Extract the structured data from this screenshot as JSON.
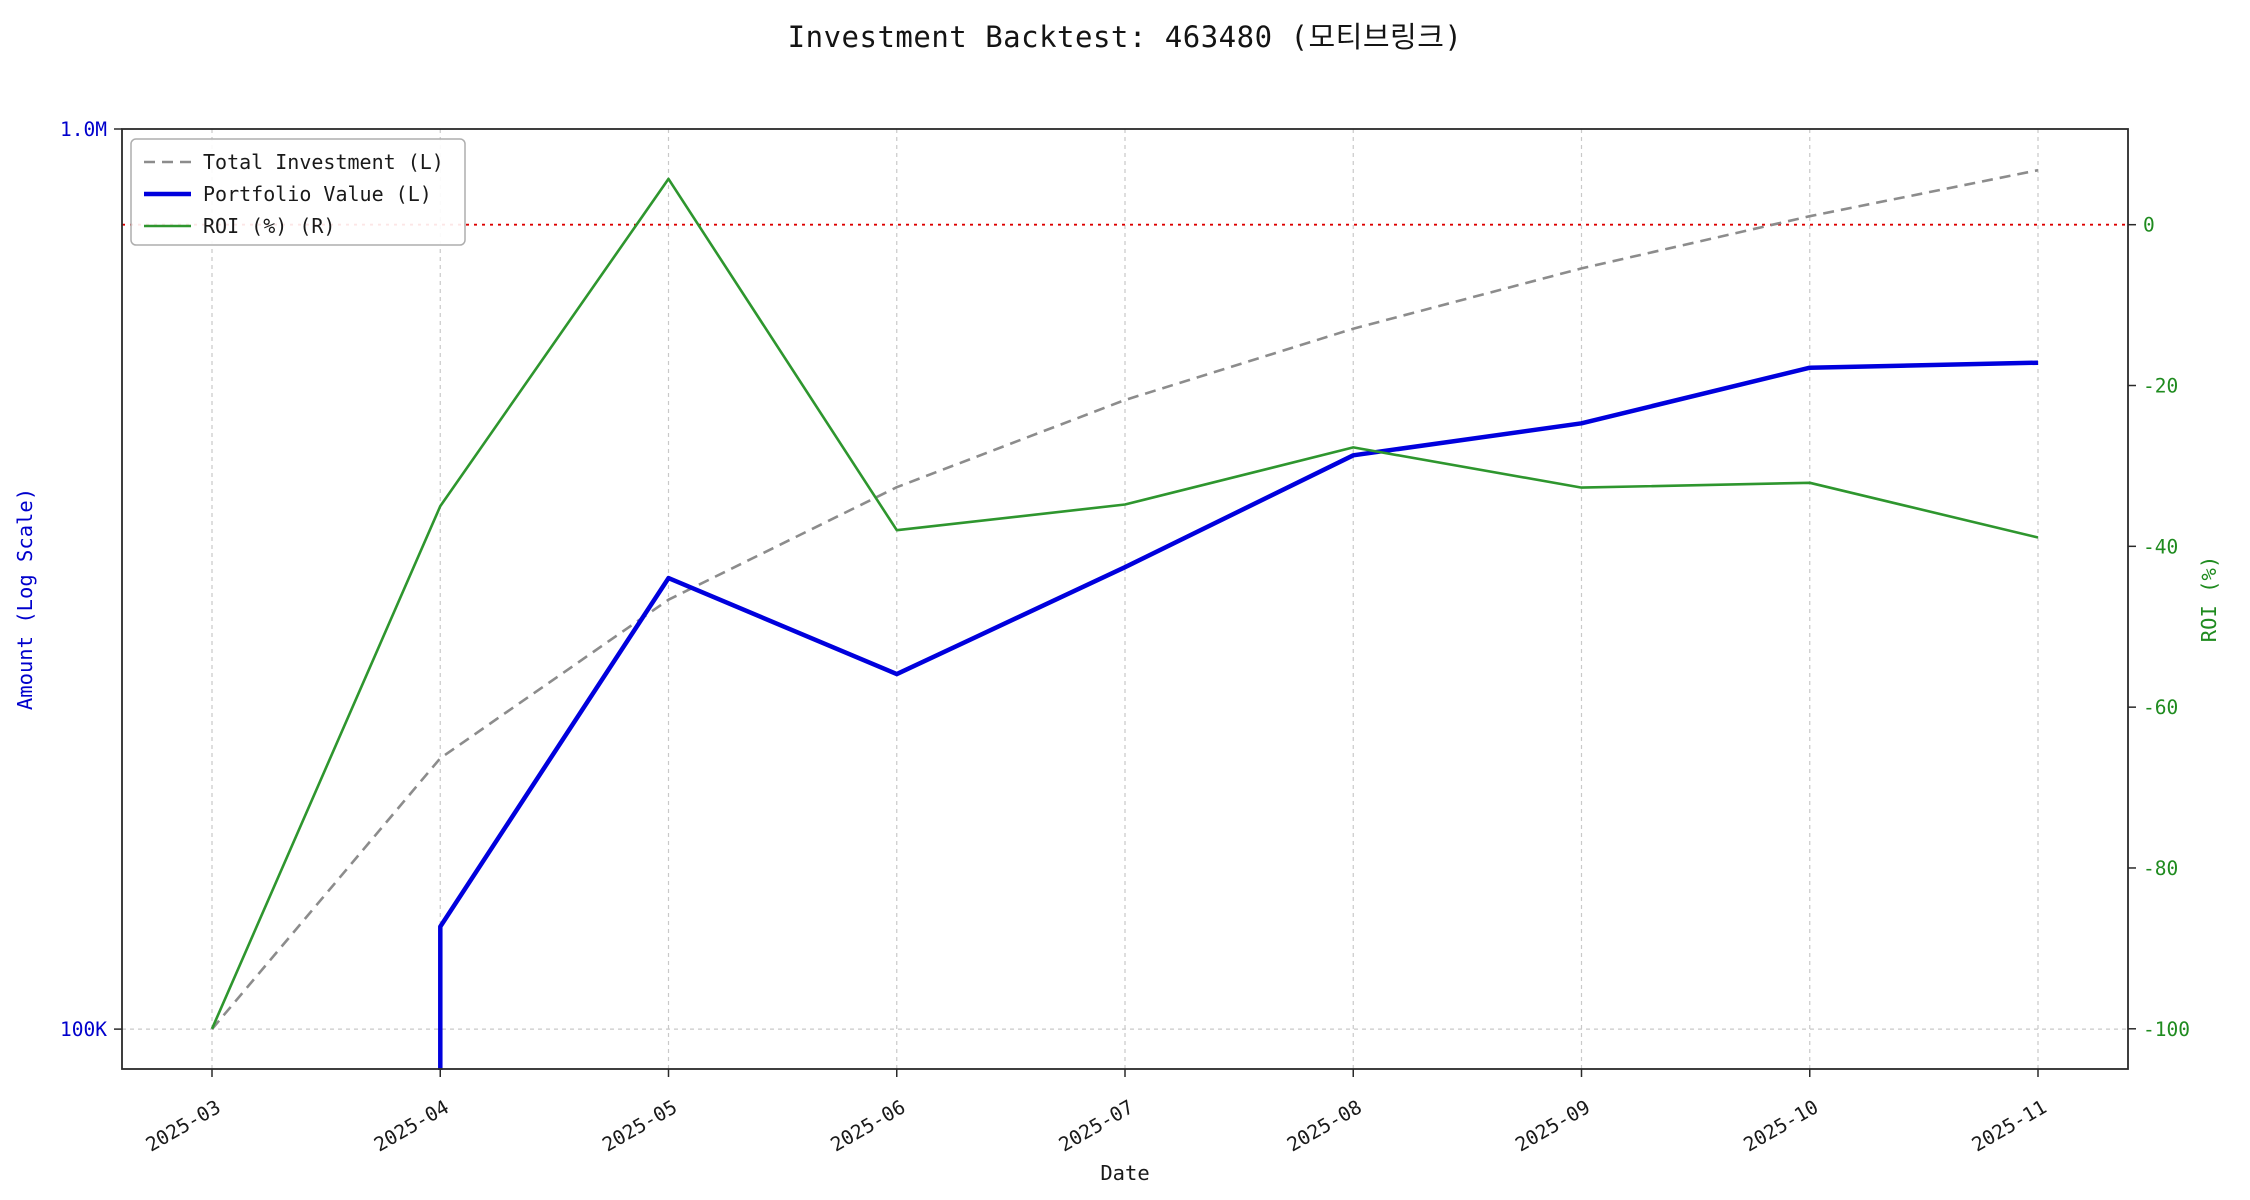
{
  "chart_data": {
    "type": "line",
    "title": "Investment Backtest: 463480 (모티브링크)",
    "xlabel": "Date",
    "x": [
      "2025-03",
      "2025-04",
      "2025-05",
      "2025-06",
      "2025-07",
      "2025-08",
      "2025-09",
      "2025-10",
      "2025-11"
    ],
    "left_axis": {
      "label": "Amount (Log Scale)",
      "scale": "log",
      "range": [
        90300,
        1000000
      ],
      "ticks": [
        {
          "value": 1000000,
          "label": "1.0M"
        },
        {
          "value": 100000,
          "label": "100K"
        }
      ],
      "color": "#0000cc"
    },
    "right_axis": {
      "label": "ROI (%)",
      "scale": "linear",
      "range": [
        -105,
        11.9
      ],
      "ticks": [
        {
          "value": 0,
          "label": "0"
        },
        {
          "value": -20,
          "label": "-20"
        },
        {
          "value": -40,
          "label": "-40"
        },
        {
          "value": -60,
          "label": "-60"
        },
        {
          "value": -80,
          "label": "-80"
        },
        {
          "value": -100,
          "label": "-100"
        }
      ],
      "color": "#1f8b1f"
    },
    "series": [
      {
        "name": "Total Investment (L)",
        "axis": "left",
        "color": "#8c8c8c",
        "dash": "dashed",
        "width": 2.6,
        "values": [
          100000,
          200000,
          300000,
          400000,
          500000,
          600000,
          700000,
          800000,
          900000
        ]
      },
      {
        "name": "Portfolio Value (L)",
        "axis": "left",
        "color": "#0000dd",
        "dash": "solid",
        "width": 4.5,
        "start_vertical": true,
        "values": [
          null,
          130000,
          317000,
          248000,
          326000,
          434000,
          471000,
          543000,
          550000
        ]
      },
      {
        "name": "ROI (%) (R)",
        "axis": "right",
        "color": "#2e962e",
        "dash": "solid",
        "width": 2.6,
        "values": [
          -100,
          -35,
          5.7,
          -38,
          -34.8,
          -27.7,
          -32.7,
          -32.1,
          -38.9
        ]
      }
    ],
    "reference_lines": [
      {
        "axis": "right",
        "value": 0,
        "color": "#dd0000",
        "dash": "dotted",
        "width": 1.8,
        "name": "roi-zero-line"
      }
    ],
    "legend": {
      "position": "upper-left",
      "items": [
        "Total Investment (L)",
        "Portfolio Value (L)",
        "ROI (%) (R)"
      ]
    },
    "grid": true
  }
}
